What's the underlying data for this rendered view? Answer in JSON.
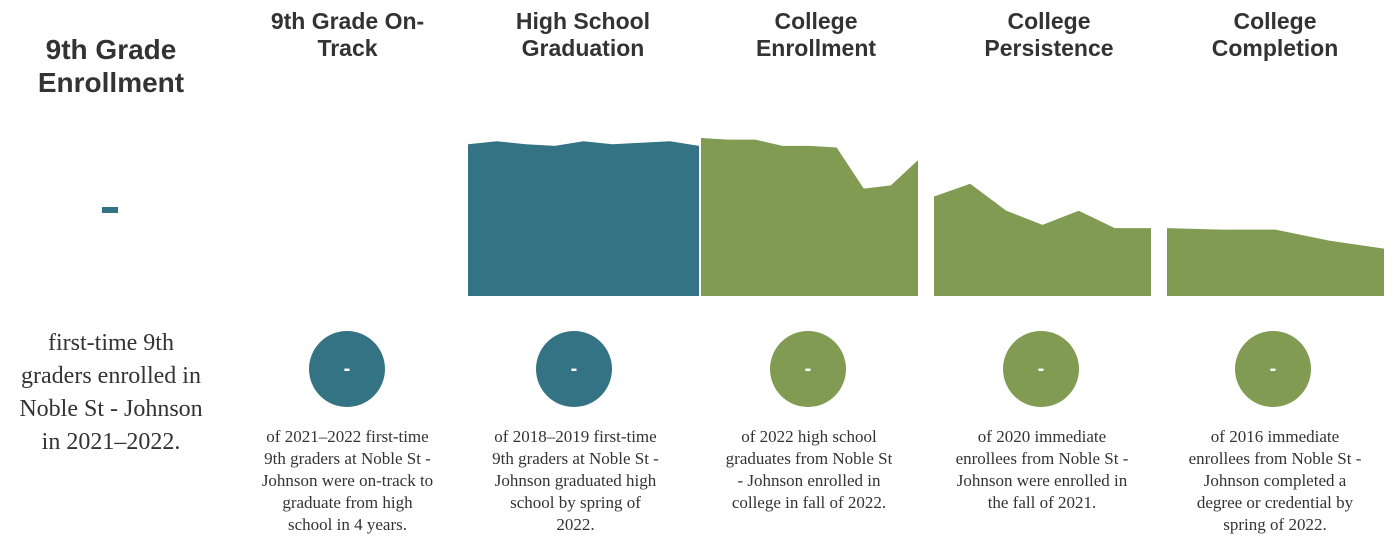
{
  "colors": {
    "teal": "#347383",
    "green": "#819b52",
    "text": "#333333"
  },
  "enrollment": {
    "title_line1": "9th Grade",
    "title_line2": "Enrollment",
    "value": "-",
    "desc_lines": [
      "first-time 9th",
      "graders enrolled in",
      "Noble St - Johnson",
      "in 2021–2022."
    ]
  },
  "stages": [
    {
      "id": "on-track",
      "title_lines": [
        "9th Grade On-",
        "Track"
      ],
      "value": "-",
      "color": "#347383",
      "desc_lines": [
        "of 2021–2022 first-time",
        "9th graders at Noble St -",
        "Johnson were on-track to",
        "graduate from high",
        "school in 4 years."
      ]
    },
    {
      "id": "hs-graduation",
      "title_lines": [
        "High School",
        "Graduation"
      ],
      "value": "-",
      "color": "#347383",
      "desc_lines": [
        "of 2018–2019 first-time",
        "9th graders at Noble St -",
        "Johnson graduated high",
        "school by spring of",
        "2022."
      ]
    },
    {
      "id": "college-enrollment",
      "title_lines": [
        "College",
        "Enrollment"
      ],
      "value": "-",
      "color": "#819b52",
      "desc_lines": [
        "of 2022 high school",
        "graduates from Noble St",
        "- Johnson enrolled in",
        "college in fall of 2022."
      ]
    },
    {
      "id": "college-persistence",
      "title_lines": [
        "College",
        "Persistence"
      ],
      "value": "-",
      "color": "#819b52",
      "desc_lines": [
        "of 2020 immediate",
        "enrollees from Noble St -",
        "Johnson were enrolled in",
        "the fall of 2021."
      ]
    },
    {
      "id": "college-completion",
      "title_lines": [
        "College",
        "Completion"
      ],
      "value": "-",
      "color": "#819b52",
      "desc_lines": [
        "of 2016 immediate",
        "enrollees from Noble St -",
        "Johnson completed a",
        "degree or credential by",
        "spring of 2022."
      ]
    }
  ],
  "chart_data": {
    "type": "area",
    "ylim": [
      0,
      100
    ],
    "grid": false,
    "panels": [
      {
        "stage": "hs-graduation",
        "color": "#347383",
        "values": [
          96,
          98,
          96,
          95,
          98,
          96,
          97,
          98,
          95
        ]
      },
      {
        "stage": "college-enrollment",
        "color": "#819b52",
        "values": [
          100,
          99,
          99,
          95,
          95,
          94,
          68,
          70,
          86
        ]
      },
      {
        "stage": "college-persistence",
        "color": "#819b52",
        "values": [
          63,
          71,
          54,
          45,
          54,
          43,
          43
        ]
      },
      {
        "stage": "college-completion",
        "color": "#819b52",
        "values": [
          43,
          42,
          42,
          35,
          30
        ]
      }
    ]
  }
}
